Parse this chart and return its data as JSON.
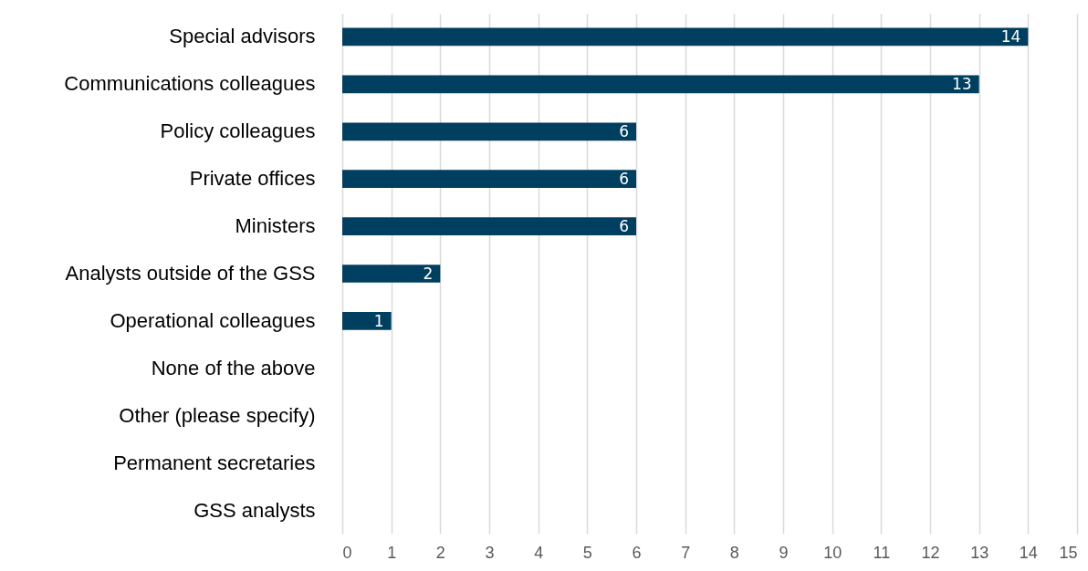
{
  "chart_data": {
    "type": "bar",
    "orientation": "horizontal",
    "categories": [
      "Special advisors",
      "Communications colleagues",
      "Policy colleagues ",
      "Private offices",
      "Ministers",
      "Analysts outside of the GSS",
      "Operational colleagues",
      "None of the above",
      "Other (please specify)",
      "Permanent secretaries",
      "GSS analysts "
    ],
    "values": [
      14,
      13,
      6,
      6,
      6,
      2,
      1,
      0,
      0,
      0,
      0
    ],
    "value_labels": [
      "14",
      "13",
      "6",
      "6",
      "6",
      "2",
      "1",
      null,
      null,
      null,
      null
    ],
    "color": "#003f5f",
    "xlim": [
      0,
      15
    ],
    "xticks": [
      0,
      1,
      2,
      3,
      4,
      5,
      6,
      7,
      8,
      9,
      10,
      11,
      12,
      13,
      14,
      15
    ],
    "grid": "x"
  }
}
